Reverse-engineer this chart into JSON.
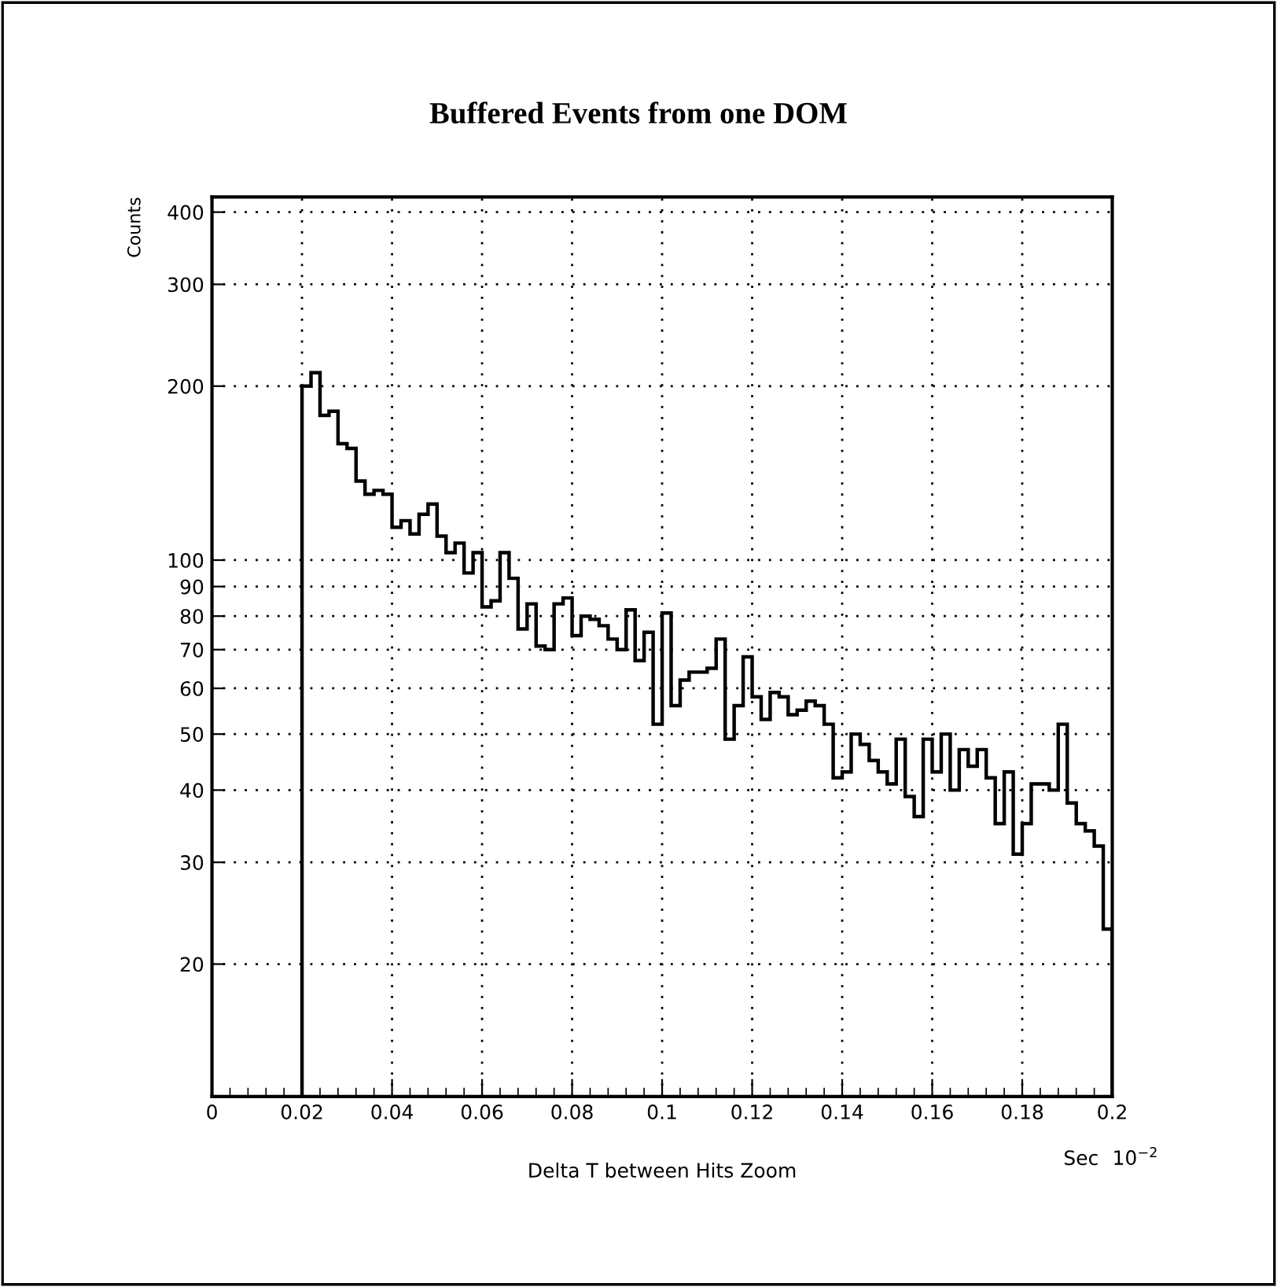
{
  "chart_data": {
    "type": "histogram",
    "title": "Buffered Events from one DOM",
    "xlabel": "Delta T between Hits Zoom",
    "ylabel": "Counts",
    "annotations": [
      "Sec",
      "10$^{−2}$"
    ],
    "bins": [
      0.02,
      0.022,
      0.024,
      0.026,
      0.028,
      0.03,
      0.032,
      0.034,
      0.036,
      0.038,
      0.04,
      0.042,
      0.044,
      0.046,
      0.048,
      0.05,
      0.052,
      0.054,
      0.056,
      0.058,
      0.06,
      0.062,
      0.064,
      0.066,
      0.068,
      0.07,
      0.072,
      0.074,
      0.076,
      0.078,
      0.08,
      0.082,
      0.084,
      0.086,
      0.088,
      0.09,
      0.092,
      0.094,
      0.096,
      0.098,
      0.1,
      0.102,
      0.104,
      0.106,
      0.108,
      0.11,
      0.112,
      0.114,
      0.116,
      0.118,
      0.12,
      0.122,
      0.124,
      0.126,
      0.128,
      0.13,
      0.132,
      0.134,
      0.136,
      0.138,
      0.14,
      0.142,
      0.144,
      0.146,
      0.148,
      0.15,
      0.152,
      0.154,
      0.156,
      0.158,
      0.16,
      0.162,
      0.164,
      0.166,
      0.168,
      0.17,
      0.172,
      0.174,
      0.176,
      0.178,
      0.18,
      0.182,
      0.184,
      0.186,
      0.188,
      0.19,
      0.192,
      0.194,
      0.196,
      0.198,
      0.2
    ],
    "values": [
      200,
      211,
      178,
      181,
      159,
      156,
      137,
      130,
      132,
      130,
      114,
      117,
      111,
      120,
      125,
      110,
      103,
      107,
      95,
      103,
      83,
      85,
      103,
      93,
      76,
      84,
      71,
      70,
      84,
      86,
      74,
      80,
      79,
      77,
      73,
      70,
      82,
      67,
      75,
      52,
      81,
      56,
      62,
      64,
      64,
      65,
      73,
      49,
      56,
      68,
      58,
      53,
      59,
      58,
      54,
      55,
      57,
      56,
      52,
      42,
      43,
      50,
      48,
      45,
      43,
      41,
      49,
      39,
      36,
      49,
      43,
      50,
      40,
      47,
      44,
      47,
      42,
      35,
      43,
      31,
      35,
      41,
      41,
      40,
      52,
      38,
      35,
      34,
      32,
      23
    ],
    "color": "#000000",
    "log": "y",
    "grid": true,
    "xlim": [
      0,
      0.2
    ],
    "xticks": [
      0,
      0.02,
      0.04,
      0.06,
      0.08,
      0.1,
      0.12,
      0.14,
      0.16,
      0.18,
      0.2
    ],
    "ylim": [
      11.8,
      425
    ],
    "yticks": [
      20,
      30,
      40,
      50,
      60,
      70,
      80,
      90,
      100,
      200,
      300,
      400
    ]
  }
}
